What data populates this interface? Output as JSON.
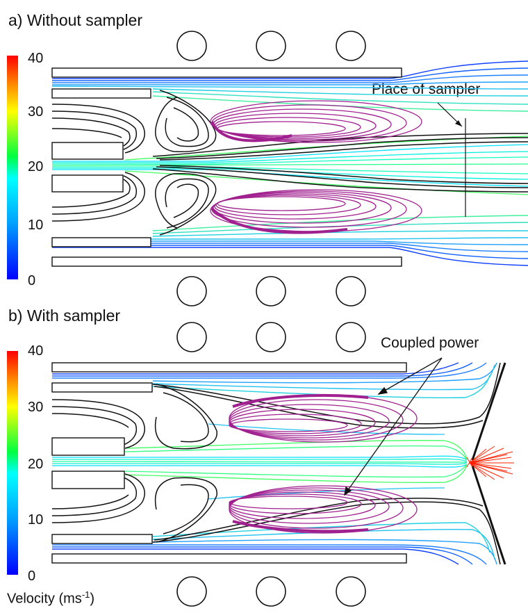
{
  "panel_a": {
    "title": "a) Without sampler",
    "annotation": "Place of sampler"
  },
  "panel_b": {
    "title": "b) With sampler",
    "annotation": "Coupled power"
  },
  "colorbar": {
    "ticks": [
      "40",
      "30",
      "20",
      "10",
      "0"
    ],
    "min": 0,
    "max": 40,
    "colors": [
      "#0000ff",
      "#00a0ff",
      "#00ffff",
      "#00ff40",
      "#ffff00",
      "#ff8000",
      "#ff0000"
    ]
  },
  "axis_label": {
    "text": "Velocity (ms",
    "sup": "-1",
    "close": ")"
  },
  "colors": {
    "coil_flow": "#a0208f",
    "recirculation": "#111111",
    "discharge": "#ff2000"
  }
}
